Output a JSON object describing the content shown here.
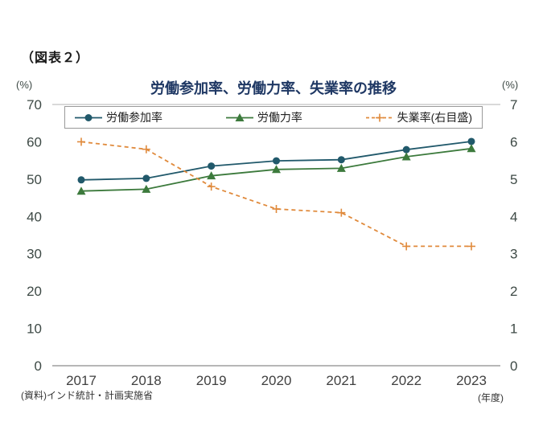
{
  "figure_label": "（図表２）",
  "title": "労働参加率、労働力率、失業率の推移",
  "left_axis_unit": "(%)",
  "right_axis_unit": "(%)",
  "x_axis_unit": "(年度)",
  "source": "(資料)インド統計・計画実施省",
  "colors": {
    "title": "#1f3864",
    "tick": "#3e4a46",
    "axis_line": "#8c8c8c",
    "top_border": "#b3b3b3",
    "text": "#333333"
  },
  "chart_data": {
    "type": "line",
    "title": "労働参加率、労働力率、失業率の推移",
    "categories": [
      "2017",
      "2018",
      "2019",
      "2020",
      "2021",
      "2022",
      "2023"
    ],
    "series": [
      {
        "name": "労働参加率",
        "axis": "left",
        "marker": "circle",
        "line": "solid",
        "color": "#21596b",
        "values": [
          49.8,
          50.2,
          53.5,
          54.9,
          55.2,
          57.9,
          60.1
        ]
      },
      {
        "name": "労働力率",
        "axis": "left",
        "marker": "triangle",
        "line": "solid",
        "color": "#3c7a3c",
        "values": [
          46.8,
          47.3,
          50.9,
          52.6,
          52.9,
          56.0,
          58.2
        ]
      },
      {
        "name": "失業率(右目盛)",
        "axis": "right",
        "marker": "plus",
        "line": "dashed",
        "color": "#e08a3c",
        "values": [
          6.0,
          5.8,
          4.8,
          4.2,
          4.1,
          3.2,
          3.2
        ]
      }
    ],
    "left_axis": {
      "label": "(%)",
      "min": 0,
      "max": 70,
      "ticks": [
        0,
        10,
        20,
        30,
        40,
        50,
        60,
        70
      ]
    },
    "right_axis": {
      "label": "(%)",
      "min": 0,
      "max": 7,
      "ticks": [
        0,
        1,
        2,
        3,
        4,
        5,
        6,
        7
      ]
    },
    "x_label": "(年度)",
    "legend_position": "top",
    "grid": false
  }
}
